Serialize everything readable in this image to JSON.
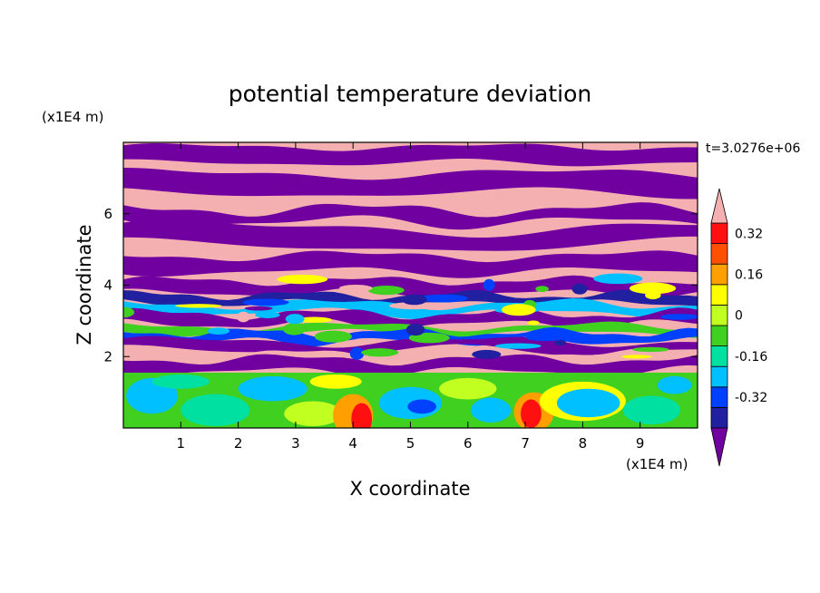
{
  "chart_data": {
    "type": "heatmap",
    "title": "potential temperature deviation",
    "xlabel": "X coordinate",
    "ylabel": "Z coordinate",
    "x_unit": "(x1E4 m)",
    "y_unit": "(x1E4 m)",
    "time_label": "t=3.0276e+06",
    "xlim": [
      0,
      10
    ],
    "ylim": [
      0,
      8
    ],
    "x_ticks": [
      "1",
      "2",
      "3",
      "4",
      "5",
      "6",
      "7",
      "8",
      "9"
    ],
    "y_ticks": [
      "2",
      "4",
      "6"
    ],
    "colorbar": {
      "tick_labels": [
        "0.32",
        "0.16",
        "0",
        "-0.16",
        "-0.32"
      ],
      "tick_values": [
        0.32,
        0.16,
        0,
        -0.16,
        -0.32
      ],
      "levels": [
        -0.4,
        -0.32,
        -0.24,
        -0.16,
        -0.08,
        0,
        0.08,
        0.16,
        0.24,
        0.32,
        0.4
      ],
      "colors": [
        "#7000a0",
        "#2020a0",
        "#0040ff",
        "#00c0ff",
        "#00e0a0",
        "#40d020",
        "#c0ff20",
        "#ffff00",
        "#ffa000",
        "#ff5000",
        "#ff1010",
        "#f4b0b0"
      ],
      "extend": "both"
    },
    "structure": [
      {
        "z_range": [
          4.2,
          8.0
        ],
        "dominant": [
          "#f4b0b0",
          "#7000a0"
        ],
        "description": "alternating bands"
      },
      {
        "z_range": [
          1.6,
          4.2
        ],
        "dominant": [
          "#7000a0",
          "#2020a0",
          "#00c0ff",
          "#40d020",
          "#f4b0b0"
        ],
        "description": "mixed bands"
      },
      {
        "z_range": [
          0.0,
          1.6
        ],
        "dominant": [
          "#00c0ff",
          "#40d020",
          "#c0ff20",
          "#ff5000"
        ],
        "description": "turbulent lower layer"
      }
    ],
    "grid": false,
    "legend": "colorbar-right"
  }
}
